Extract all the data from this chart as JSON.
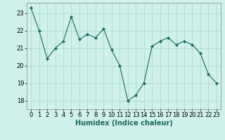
{
  "x": [
    0,
    1,
    2,
    3,
    4,
    5,
    6,
    7,
    8,
    9,
    10,
    11,
    12,
    13,
    14,
    15,
    16,
    17,
    18,
    19,
    20,
    21,
    22,
    23
  ],
  "y": [
    23.3,
    22.0,
    20.4,
    21.0,
    21.4,
    22.8,
    21.5,
    21.8,
    21.6,
    22.1,
    20.9,
    20.0,
    18.0,
    18.3,
    19.0,
    21.1,
    21.4,
    21.6,
    21.2,
    21.4,
    21.2,
    20.7,
    19.5,
    19.0
  ],
  "line_color": "#1a6b5a",
  "marker": "D",
  "marker_size": 2,
  "bg_color": "#cff0eb",
  "grid_color": "#aaddcc",
  "xlabel": "Humidex (Indice chaleur)",
  "xlabel_fontsize": 7,
  "tick_fontsize": 6,
  "ylim": [
    17.5,
    23.6
  ],
  "xlim": [
    -0.5,
    23.5
  ],
  "yticks": [
    18,
    19,
    20,
    21,
    22,
    23
  ],
  "xticks": [
    0,
    1,
    2,
    3,
    4,
    5,
    6,
    7,
    8,
    9,
    10,
    11,
    12,
    13,
    14,
    15,
    16,
    17,
    18,
    19,
    20,
    21,
    22,
    23
  ]
}
